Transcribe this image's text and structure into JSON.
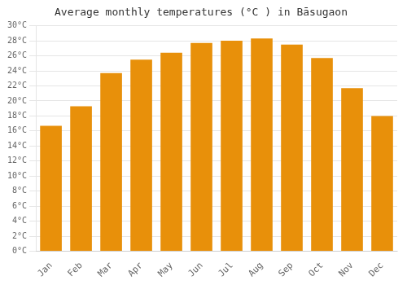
{
  "chart_data": {
    "type": "bar",
    "title": "Average monthly temperatures (°C ) in Bāsugaon",
    "categories": [
      "Jan",
      "Feb",
      "Mar",
      "Apr",
      "May",
      "Jun",
      "Jul",
      "Aug",
      "Sep",
      "Oct",
      "Nov",
      "Dec"
    ],
    "values": [
      16.7,
      19.3,
      23.7,
      25.5,
      26.4,
      27.7,
      28.0,
      28.3,
      27.5,
      25.7,
      21.7,
      18.0
    ],
    "color": "#E8900A",
    "ylim": [
      0,
      30
    ],
    "yticks": [
      {
        "value": 0,
        "label": "0°C"
      },
      {
        "value": 2,
        "label": "2°C"
      },
      {
        "value": 4,
        "label": "4°C"
      },
      {
        "value": 6,
        "label": "6°C"
      },
      {
        "value": 8,
        "label": "8°C"
      },
      {
        "value": 10,
        "label": "10°C"
      },
      {
        "value": 12,
        "label": "12°C"
      },
      {
        "value": 14,
        "label": "14°C"
      },
      {
        "value": 16,
        "label": "16°C"
      },
      {
        "value": 18,
        "label": "18°C"
      },
      {
        "value": 20,
        "label": "20°C"
      },
      {
        "value": 22,
        "label": "22°C"
      },
      {
        "value": 24,
        "label": "24°C"
      },
      {
        "value": 26,
        "label": "26°C"
      },
      {
        "value": 28,
        "label": "28°C"
      },
      {
        "value": 30,
        "label": "30°C"
      }
    ],
    "grid": true
  }
}
